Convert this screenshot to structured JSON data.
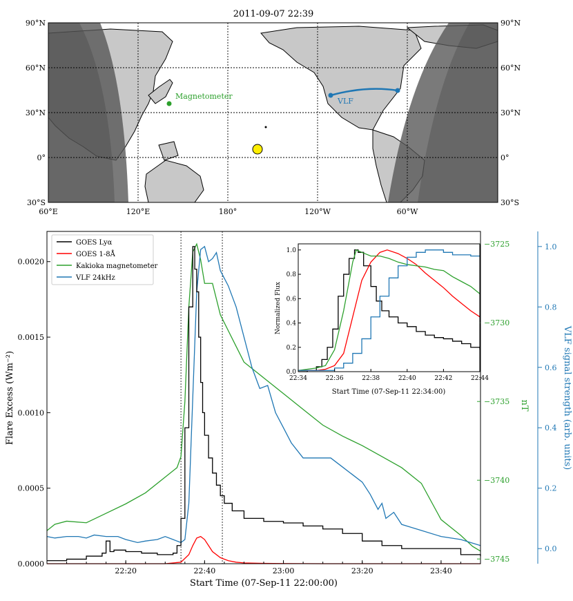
{
  "colors": {
    "black": "#000000",
    "red": "#ff0000",
    "green": "#2ca02c",
    "blue": "#1f77b4",
    "land": "#c8c8c8",
    "night": "#555555",
    "sun": "#ffee00"
  },
  "map": {
    "title": "2011-09-07 22:39",
    "lon_ticks": [
      "60°E",
      "120°E",
      "180°",
      "120°W",
      "60°W"
    ],
    "lat_ticks_left": [
      "90°N",
      "60°N",
      "30°N",
      "0°",
      "30°S"
    ],
    "lat_ticks_right": [
      "90°N",
      "60°N",
      "30°N",
      "0°",
      "30°S"
    ],
    "magnetometer_label": "Magnetometer",
    "vlf_label": "VLF"
  },
  "chart_data": [
    {
      "type": "line",
      "title": "",
      "xlabel": "Start Time (07-Sep-11 22:00:00)",
      "ylabel": "Flare Excess (Wm⁻²)",
      "ylabel_right1": "nT",
      "ylabel_right2": "VLF signal strength (arb. units)",
      "x_unit": "minutes after 22:00",
      "xlim": [
        0,
        110
      ],
      "xticks": [
        20,
        40,
        60,
        80,
        100
      ],
      "xtick_labels": [
        "22:20",
        "22:40",
        "23:00",
        "23:20",
        "23:40"
      ],
      "ylim": [
        0,
        0.0022
      ],
      "yticks": [
        0,
        0.0005,
        0.001,
        0.0015,
        0.002
      ],
      "ytick_labels": [
        "0.0000",
        "0.0005",
        "0.0010",
        "0.0015",
        "0.0020"
      ],
      "y2lim": [
        -3745.3,
        -3724.2
      ],
      "y2ticks": [
        -3745,
        -3740,
        -3735,
        -3730,
        -3725
      ],
      "y2tick_labels": [
        "−3745",
        "−3740",
        "−3735",
        "−3730",
        "−3725"
      ],
      "y3lim": [
        -0.05,
        1.05
      ],
      "y3ticks": [
        0,
        0.2,
        0.4,
        0.6,
        0.8,
        1.0
      ],
      "y3tick_labels": [
        "0.0",
        "0.2",
        "0.4",
        "0.6",
        "0.8",
        "1.0"
      ],
      "vlines": [
        34,
        44.5
      ],
      "legend": [
        "GOES Lyα",
        "GOES 1-8Å",
        "Kakioka magnetometer",
        "VLF 24kHz"
      ],
      "series": [
        {
          "name": "GOES Lyα",
          "axis": "left",
          "step": true,
          "x": [
            0,
            5,
            10,
            14,
            15,
            16,
            17,
            20,
            24,
            28,
            32,
            33,
            34,
            35,
            36,
            37,
            37.5,
            38,
            38.5,
            39,
            39.5,
            40,
            41,
            42,
            43,
            44,
            45,
            47,
            50,
            55,
            60,
            65,
            70,
            75,
            80,
            85,
            90,
            95,
            100,
            105,
            110
          ],
          "values": [
            2e-05,
            3e-05,
            5e-05,
            7e-05,
            0.00015,
            8e-05,
            9e-05,
            8e-05,
            7e-05,
            6e-05,
            7e-05,
            0.00012,
            0.0003,
            0.0009,
            0.0017,
            0.0021,
            0.00195,
            0.0018,
            0.0015,
            0.0012,
            0.001,
            0.00085,
            0.0007,
            0.0006,
            0.00052,
            0.00045,
            0.0004,
            0.00035,
            0.0003,
            0.00028,
            0.00027,
            0.00025,
            0.00023,
            0.0002,
            0.00015,
            0.00012,
            0.0001,
            0.0001,
            0.0001,
            6e-05,
            5e-05
          ]
        },
        {
          "name": "GOES 1-8Å",
          "axis": "left",
          "x": [
            0,
            30,
            34,
            36,
            37,
            38,
            39,
            40,
            41,
            42,
            44,
            46,
            48,
            50,
            55,
            60,
            70,
            80,
            110
          ],
          "values": [
            0,
            0,
            1e-05,
            6e-05,
            0.00012,
            0.00017,
            0.00018,
            0.00016,
            0.00012,
            8e-05,
            4e-05,
            2e-05,
            1e-05,
            5e-06,
            2e-06,
            1e-06,
            0,
            0,
            0
          ]
        },
        {
          "name": "Kakioka magnetometer",
          "axis": "right1",
          "x": [
            0,
            2,
            5,
            10,
            15,
            20,
            25,
            30,
            33,
            34,
            35,
            36,
            37,
            38,
            39,
            40,
            42,
            44,
            46,
            48,
            50,
            55,
            60,
            65,
            70,
            75,
            80,
            85,
            90,
            95,
            100,
            105,
            108,
            110
          ],
          "values": [
            -3743.2,
            -3742.8,
            -3742.6,
            -3742.7,
            -3742.1,
            -3741.5,
            -3740.8,
            -3739.8,
            -3739.2,
            -3738.5,
            -3735,
            -3729,
            -3725.5,
            -3725,
            -3726,
            -3727.5,
            -3727.5,
            -3729.5,
            -3730.5,
            -3731.5,
            -3732.5,
            -3733.5,
            -3734.5,
            -3735.5,
            -3736.5,
            -3737.2,
            -3737.8,
            -3738.5,
            -3739.2,
            -3740.2,
            -3742.5,
            -3743.5,
            -3744.2,
            -3744.5
          ]
        },
        {
          "name": "VLF 24kHz",
          "axis": "right2",
          "x": [
            0,
            2,
            5,
            8,
            10,
            12,
            15,
            18,
            20,
            23,
            25,
            28,
            30,
            32,
            34,
            35,
            36,
            37,
            38,
            39,
            40,
            41,
            42,
            43,
            44,
            46,
            48,
            50,
            52,
            54,
            56,
            58,
            60,
            62,
            65,
            68,
            70,
            72,
            75,
            78,
            80,
            82,
            84,
            85,
            86,
            88,
            90,
            95,
            100,
            105,
            110
          ],
          "values": [
            0.04,
            0.035,
            0.04,
            0.04,
            0.035,
            0.045,
            0.04,
            0.04,
            0.03,
            0.02,
            0.025,
            0.03,
            0.04,
            0.03,
            0.02,
            0.03,
            0.15,
            0.5,
            0.85,
            0.99,
            1.0,
            0.95,
            0.96,
            0.98,
            0.92,
            0.87,
            0.8,
            0.7,
            0.6,
            0.53,
            0.54,
            0.45,
            0.4,
            0.35,
            0.3,
            0.3,
            0.3,
            0.3,
            0.27,
            0.24,
            0.22,
            0.18,
            0.13,
            0.15,
            0.1,
            0.12,
            0.08,
            0.06,
            0.04,
            0.03,
            0.01
          ]
        }
      ]
    },
    {
      "type": "line",
      "title": "inset",
      "xlabel": "Start Time (07-Sep-11 22:34:00)",
      "ylabel": "Normalized Flux",
      "xlim": [
        34,
        44
      ],
      "xticks": [
        34,
        36,
        38,
        40,
        42,
        44
      ],
      "xtick_labels": [
        "22:34",
        "22:36",
        "22:38",
        "22:40",
        "22:42",
        "22:44"
      ],
      "ylim": [
        0,
        1.05
      ],
      "yticks": [
        0,
        0.2,
        0.4,
        0.6,
        0.8,
        1.0
      ],
      "ytick_labels": [
        "0.0",
        "0.2",
        "0.4",
        "0.6",
        "0.8",
        "1.0"
      ],
      "series": [
        {
          "name": "GOES Lyα",
          "step": true,
          "x": [
            34,
            34.5,
            35,
            35.3,
            35.6,
            35.9,
            36.2,
            36.5,
            36.8,
            37.1,
            37.3,
            37.6,
            38,
            38.3,
            38.6,
            39,
            39.5,
            40,
            40.5,
            41,
            41.5,
            42,
            42.5,
            43,
            43.5,
            44
          ],
          "values": [
            0,
            0.01,
            0.04,
            0.1,
            0.2,
            0.35,
            0.62,
            0.8,
            0.93,
            1.0,
            0.98,
            0.87,
            0.7,
            0.58,
            0.5,
            0.45,
            0.4,
            0.37,
            0.33,
            0.3,
            0.28,
            0.27,
            0.25,
            0.23,
            0.2,
            0.18
          ]
        },
        {
          "name": "GOES 1-8Å",
          "x": [
            34,
            35,
            35.5,
            36,
            36.5,
            37,
            37.5,
            38,
            38.5,
            38.9,
            39.5,
            40,
            40.5,
            41,
            41.5,
            42,
            42.5,
            43,
            43.5,
            44
          ],
          "values": [
            0.01,
            0.01,
            0.02,
            0.05,
            0.15,
            0.45,
            0.75,
            0.9,
            0.98,
            1.0,
            0.97,
            0.93,
            0.88,
            0.81,
            0.75,
            0.69,
            0.62,
            0.56,
            0.5,
            0.45
          ]
        },
        {
          "name": "Kakioka magnetometer",
          "x": [
            34,
            35,
            35.5,
            36,
            36.5,
            37,
            37.2,
            37.5,
            38,
            38.5,
            39,
            39.5,
            40,
            40.5,
            41,
            41.5,
            42,
            42.5,
            43,
            43.5,
            44
          ],
          "values": [
            0.01,
            0.03,
            0.05,
            0.18,
            0.5,
            0.9,
            1.0,
            0.98,
            0.95,
            0.95,
            0.93,
            0.9,
            0.88,
            0.87,
            0.86,
            0.84,
            0.83,
            0.78,
            0.74,
            0.7,
            0.64
          ]
        },
        {
          "name": "VLF 24kHz",
          "step": true,
          "x": [
            34,
            35,
            35.5,
            36,
            36.5,
            37,
            37.5,
            38,
            38.5,
            39,
            39.5,
            40,
            40.5,
            41,
            41.5,
            42,
            42.5,
            43,
            43.5,
            44
          ],
          "values": [
            0.01,
            0.01,
            0.01,
            0.03,
            0.07,
            0.15,
            0.27,
            0.45,
            0.62,
            0.77,
            0.87,
            0.94,
            0.98,
            1.0,
            1.0,
            0.98,
            0.96,
            0.96,
            0.95,
            0.95
          ]
        }
      ]
    }
  ]
}
